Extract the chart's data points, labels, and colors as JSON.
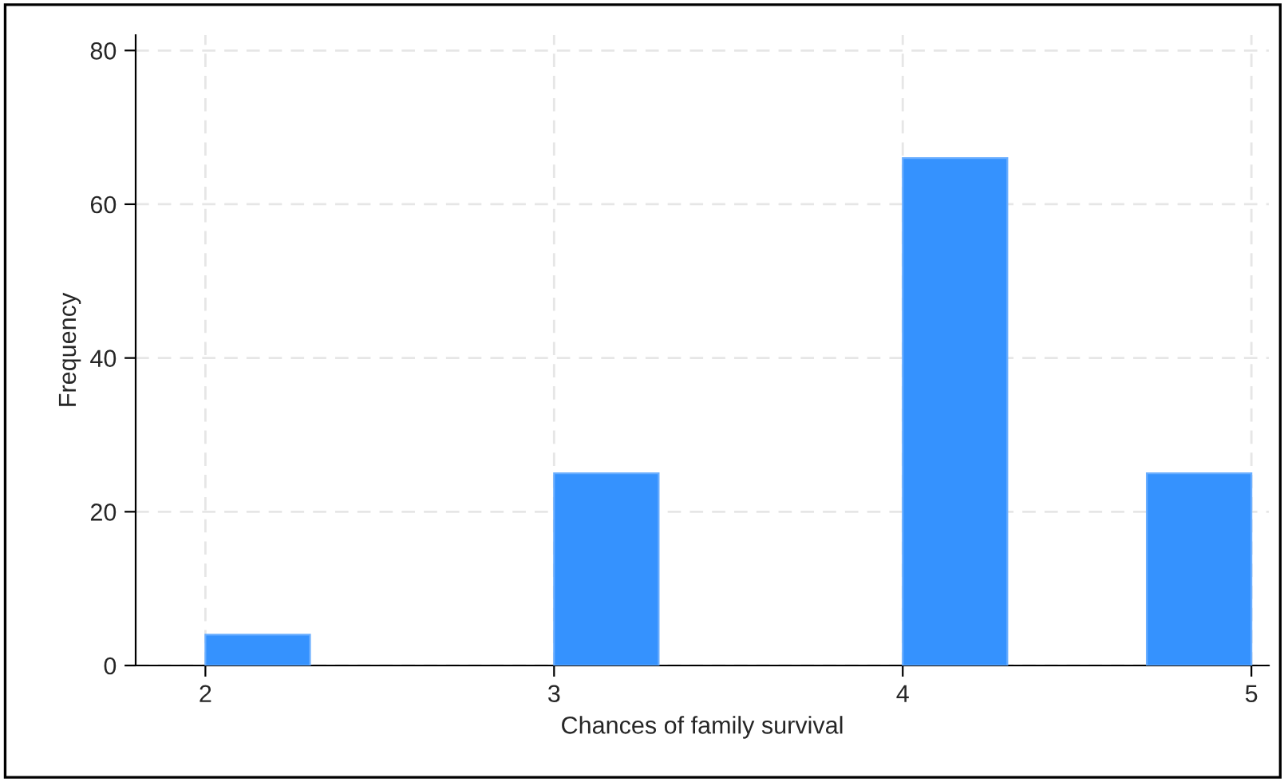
{
  "chart_data": {
    "type": "histogram",
    "xlabel": "Chances of family survival",
    "ylabel": "Frequency",
    "bins": [
      2,
      2.3,
      3,
      3.3,
      4,
      4.3,
      4.7,
      5
    ],
    "values": [
      4,
      0,
      25,
      0,
      66,
      0,
      25
    ],
    "color": "#3592fe",
    "xlim": [
      1.8,
      5.05
    ],
    "ylim": [
      0,
      82
    ],
    "xticks": [
      2,
      3,
      4,
      5
    ],
    "yticks": [
      0,
      20,
      40,
      60,
      80
    ],
    "grid": true
  }
}
